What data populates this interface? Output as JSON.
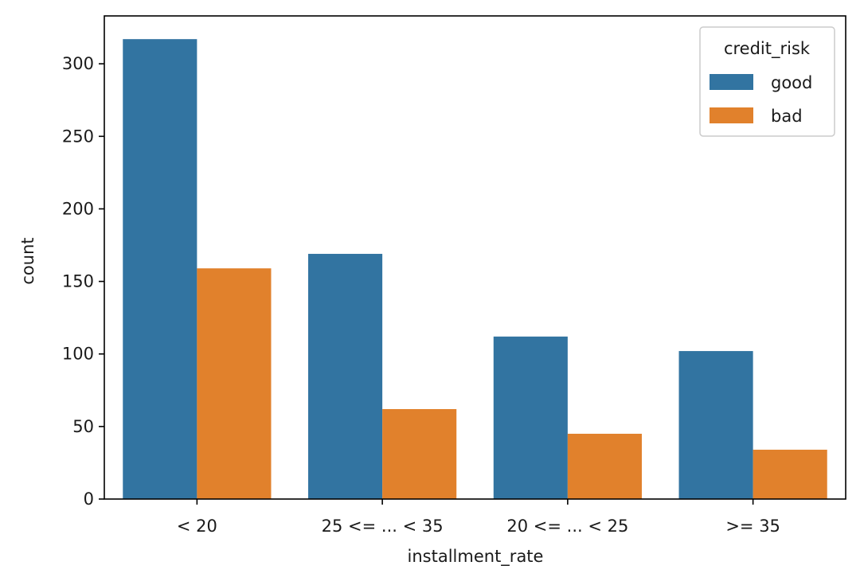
{
  "chart_data": {
    "type": "bar",
    "title": "",
    "xlabel": "installment_rate",
    "ylabel": "count",
    "categories": [
      "< 20",
      "25 <= ... < 35",
      "20 <= ... < 25",
      ">= 35"
    ],
    "series": [
      {
        "name": "good",
        "values": [
          317,
          169,
          112,
          102
        ],
        "color": "#3274a1"
      },
      {
        "name": "bad",
        "values": [
          159,
          62,
          45,
          34
        ],
        "color": "#e1812c"
      }
    ],
    "ylim": [
      0,
      333
    ],
    "yticks": [
      0,
      50,
      100,
      150,
      200,
      250,
      300
    ],
    "legend": {
      "title": "credit_risk",
      "placement": "top-right"
    },
    "grid": false
  }
}
